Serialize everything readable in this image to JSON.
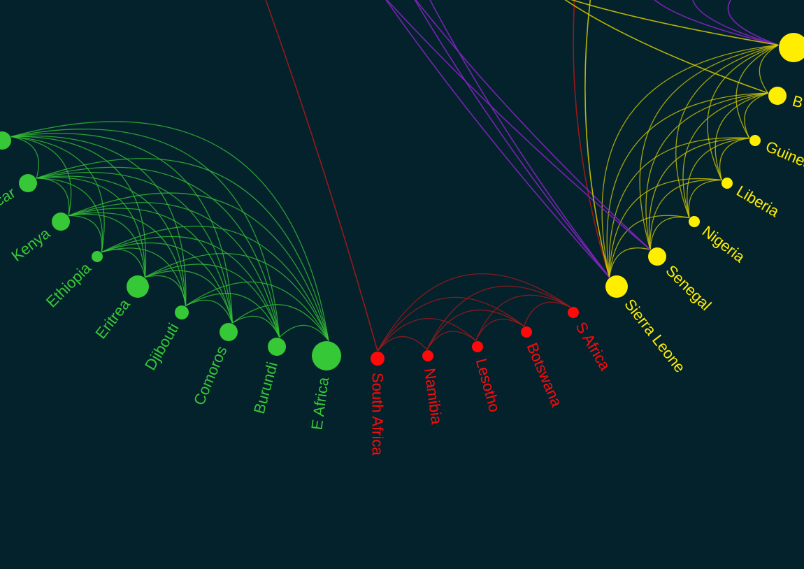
{
  "colors": {
    "background": "#04222c",
    "groups": {
      "east": "#37c837",
      "south": "#ff0a0a",
      "west": "#ffee00",
      "north": "#c020e0"
    },
    "edges": {
      "east": "#37c837",
      "south": "#b01818",
      "west": "#d8d000",
      "north": "#8a25c8"
    }
  },
  "nodes": [
    {
      "id": "n-e1",
      "label": "",
      "group": "east",
      "size": 3
    },
    {
      "id": "n-madagascar",
      "label": "Madagascar",
      "group": "east",
      "size": 3
    },
    {
      "id": "n-kenya",
      "label": "Kenya",
      "group": "east",
      "size": 3
    },
    {
      "id": "n-ethiopia",
      "label": "Ethiopia",
      "group": "east",
      "size": 1
    },
    {
      "id": "n-eritrea",
      "label": "Eritrea",
      "group": "east",
      "size": 4
    },
    {
      "id": "n-djibouti",
      "label": "Djibouti",
      "group": "east",
      "size": 2
    },
    {
      "id": "n-comoros",
      "label": "Comoros",
      "group": "east",
      "size": 3
    },
    {
      "id": "n-burundi",
      "label": "Burundi",
      "group": "east",
      "size": 3
    },
    {
      "id": "n-eafrica",
      "label": "E Africa",
      "group": "east",
      "size": 5
    },
    {
      "id": "n-southafrica",
      "label": "South Africa",
      "group": "south",
      "size": 2
    },
    {
      "id": "n-namibia",
      "label": "Namibia",
      "group": "south",
      "size": 1
    },
    {
      "id": "n-lesotho",
      "label": "Lesotho",
      "group": "south",
      "size": 1
    },
    {
      "id": "n-botswana",
      "label": "Botswana",
      "group": "south",
      "size": 1
    },
    {
      "id": "n-safrica",
      "label": "S Africa",
      "group": "south",
      "size": 1
    },
    {
      "id": "n-sierraleone",
      "label": "Sierra Leone",
      "group": "west",
      "size": 4
    },
    {
      "id": "n-senegal",
      "label": "Senegal",
      "group": "west",
      "size": 3
    },
    {
      "id": "n-nigeria",
      "label": "Nigeria",
      "group": "west",
      "size": 1
    },
    {
      "id": "n-liberia",
      "label": "Liberia",
      "group": "west",
      "size": 1
    },
    {
      "id": "n-guinea",
      "label": "Guinea",
      "group": "west",
      "size": 1
    },
    {
      "id": "n-b",
      "label": "B",
      "group": "west",
      "size": 3
    },
    {
      "id": "n-w7",
      "label": "",
      "group": "west",
      "size": 5
    }
  ],
  "edge_bundles": [
    {
      "group": "east",
      "from": "n-e1",
      "to": "n-eafrica",
      "rule": "all-pairs"
    },
    {
      "group": "south",
      "from": "n-southafrica",
      "to": "n-safrica",
      "rule": "all-pairs"
    },
    {
      "group": "west",
      "from": "n-sierraleone",
      "to": "n-w7",
      "rule": "all-pairs"
    }
  ],
  "extra_edges": [
    {
      "group": "south",
      "from": "n-southafrica",
      "to": "off-northwest"
    },
    {
      "group": "south",
      "from": "n-sierraleone",
      "to": "off-north-mid"
    },
    {
      "group": "north",
      "from": "n-sierraleone",
      "to": "off-north-a"
    },
    {
      "group": "north",
      "from": "n-sierraleone",
      "to": "off-north-b"
    },
    {
      "group": "north",
      "from": "n-sierraleone",
      "to": "off-north-c"
    },
    {
      "group": "north",
      "from": "n-senegal",
      "to": "off-north-a"
    },
    {
      "group": "north",
      "from": "n-senegal",
      "to": "off-north-b"
    },
    {
      "group": "north",
      "from": "n-w7",
      "to": "off-north-d"
    },
    {
      "group": "north",
      "from": "n-w7",
      "to": "off-north-e"
    },
    {
      "group": "north",
      "from": "n-w7",
      "to": "off-north-f"
    },
    {
      "group": "west",
      "from": "n-w7",
      "to": "off-north-g"
    },
    {
      "group": "west",
      "from": "n-b",
      "to": "off-north-g"
    },
    {
      "group": "west",
      "from": "n-sierraleone",
      "to": "off-north-h"
    }
  ]
}
